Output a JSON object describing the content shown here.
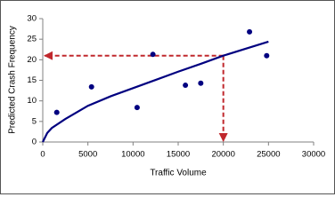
{
  "chart_data": {
    "type": "scatter",
    "xlabel": "Traffic Volume",
    "ylabel": "Predicted Crash Frequency",
    "xlim": [
      0,
      30000
    ],
    "ylim": [
      0,
      30
    ],
    "xticks": [
      0,
      5000,
      10000,
      15000,
      20000,
      25000,
      30000
    ],
    "yticks": [
      0,
      5,
      10,
      15,
      20,
      25,
      30
    ],
    "series": [
      {
        "type": "scatter",
        "color": "#000080",
        "x": [
          1550,
          5400,
          10450,
          12200,
          15800,
          17500,
          22900,
          24800
        ],
        "values": [
          7.2,
          13.4,
          8.4,
          21.3,
          13.8,
          14.3,
          26.8,
          21.0
        ]
      },
      {
        "type": "line",
        "color": "#000080",
        "x": [
          0,
          500,
          1000,
          2500,
          5000,
          7500,
          10000,
          12500,
          15000,
          17500,
          20000,
          22500,
          25000
        ],
        "values": [
          0,
          2.2,
          3.4,
          5.6,
          8.8,
          11.1,
          13.1,
          15.1,
          17.1,
          19.0,
          21.0,
          22.7,
          24.4
        ]
      }
    ],
    "reference": {
      "x": 20000,
      "y": 21,
      "color": "#c0282d"
    }
  }
}
